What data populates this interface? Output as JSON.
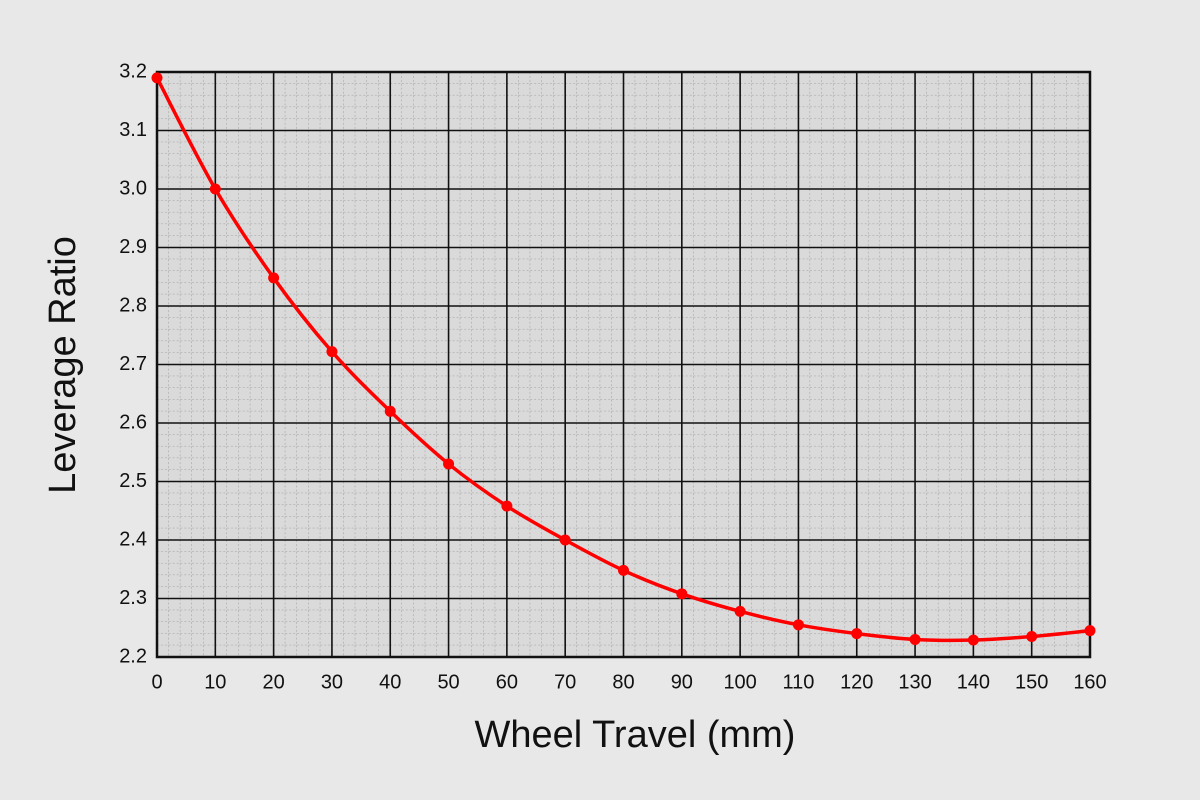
{
  "chart_data": {
    "type": "line",
    "x_label": "Wheel Travel (mm)",
    "y_label": "Leverage Ratio",
    "x": [
      0,
      10,
      20,
      30,
      40,
      50,
      60,
      70,
      80,
      90,
      100,
      110,
      120,
      130,
      140,
      150,
      160
    ],
    "series": [
      {
        "color": "#ff0000",
        "values": [
          3.19,
          3.0,
          2.848,
          2.722,
          2.62,
          2.53,
          2.458,
          2.4,
          2.348,
          2.308,
          2.278,
          2.255,
          2.24,
          2.23,
          2.229,
          2.235,
          2.245
        ]
      }
    ],
    "xlim": [
      0,
      160
    ],
    "ylim": [
      2.2,
      3.2
    ],
    "xticks": [
      0,
      10,
      20,
      30,
      40,
      50,
      60,
      70,
      80,
      90,
      100,
      110,
      120,
      130,
      140,
      150,
      160
    ],
    "yticks": [
      2.2,
      2.3,
      2.4,
      2.5,
      2.6,
      2.7,
      2.8,
      2.9,
      {
        "value": 3,
        "label": "3.0"
      },
      3.1,
      3.2
    ],
    "grid": true
  }
}
